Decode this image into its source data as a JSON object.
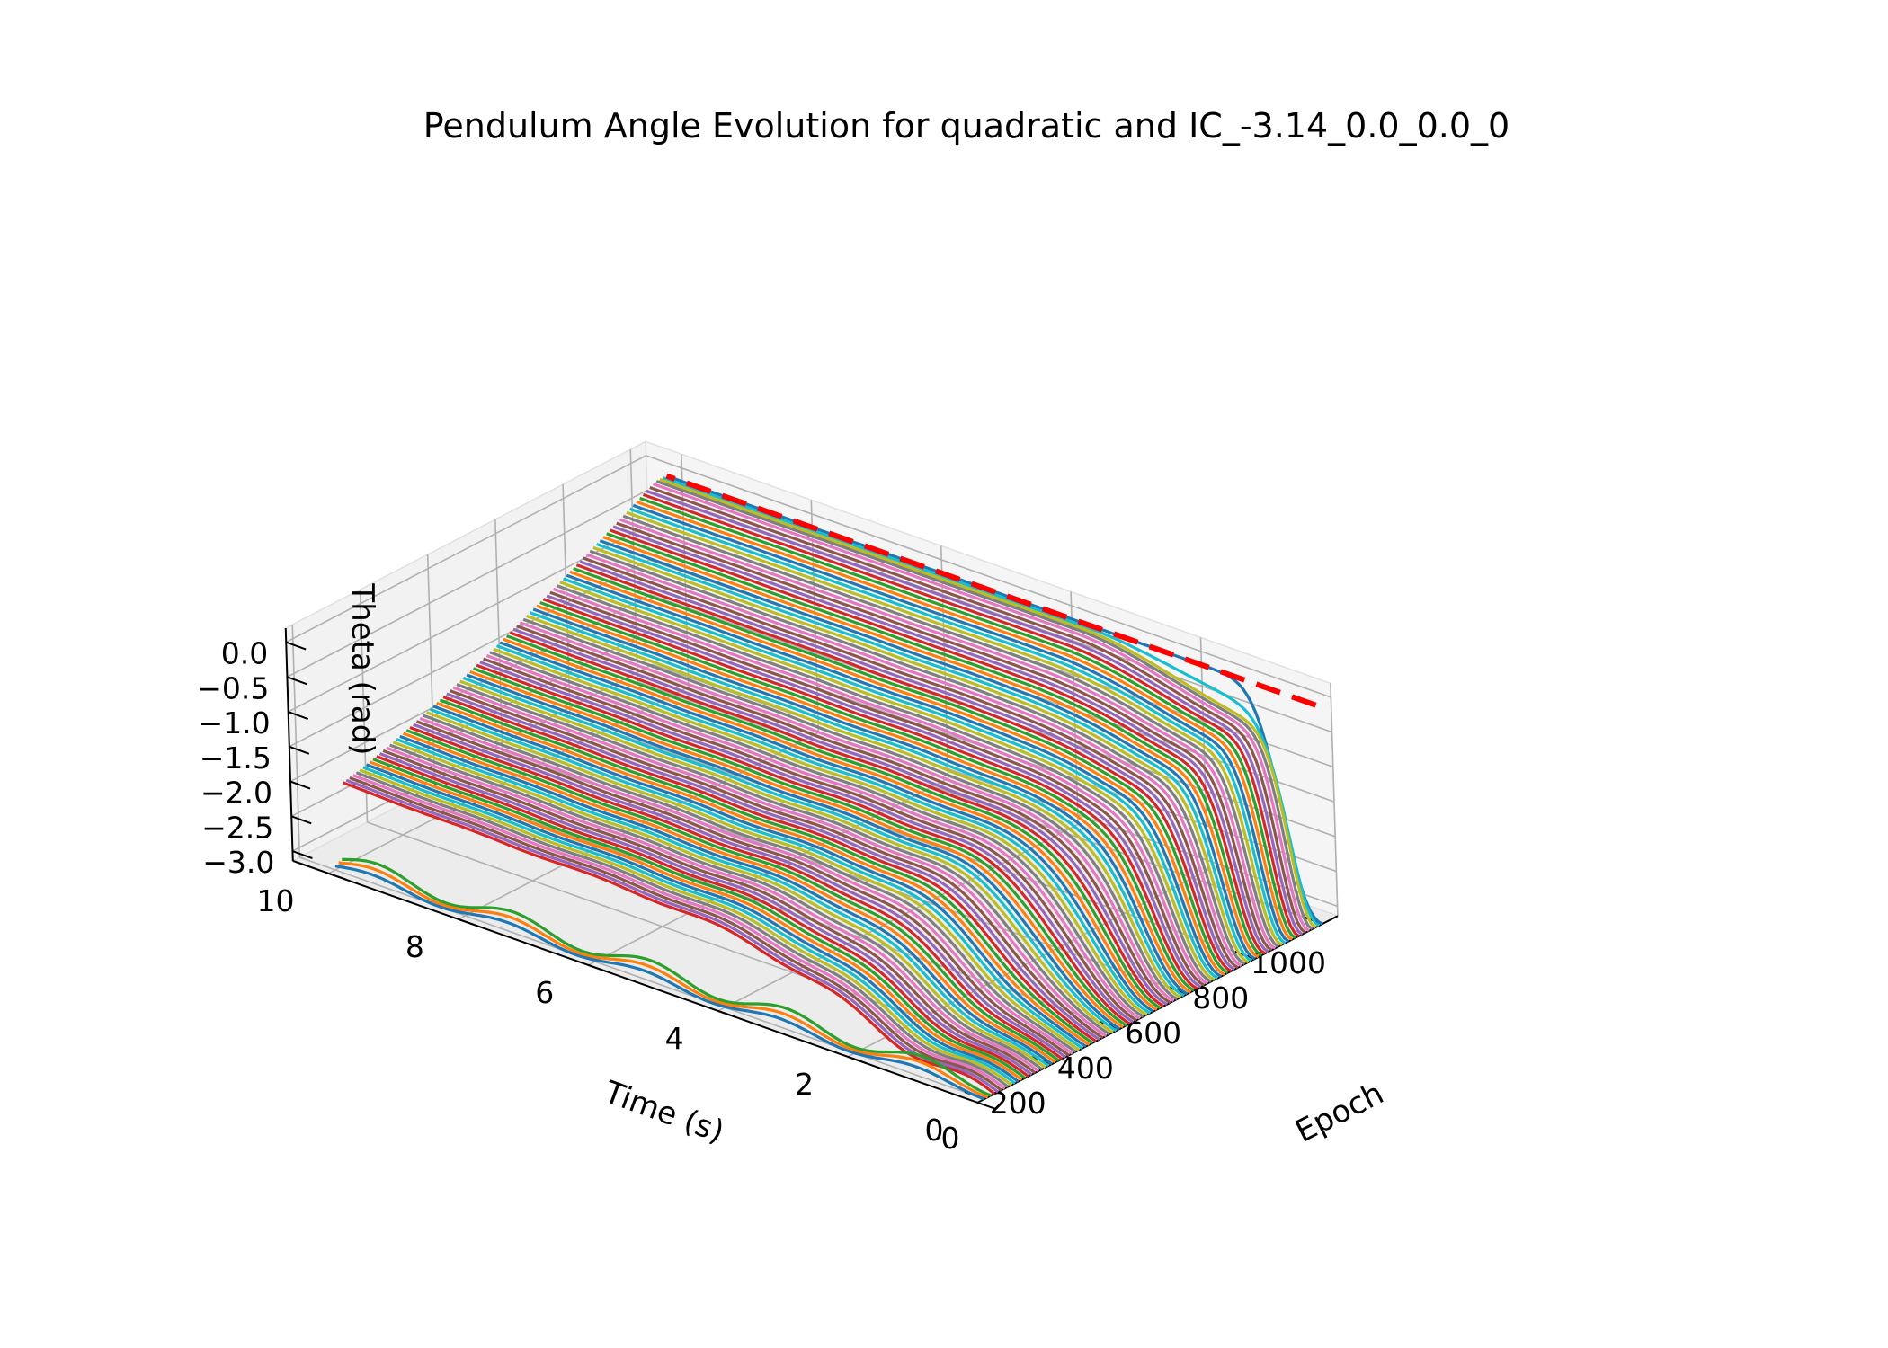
{
  "chart_data": {
    "type": "line",
    "projection": "3d",
    "title": "Pendulum Angle Evolution for quadratic and IC_-3.14_0.0_0.0_0",
    "xlabel": "Time (s)",
    "ylabel": "Epoch",
    "zlabel": "Theta (rad)",
    "xlim": [
      0,
      10
    ],
    "ylim": [
      0,
      1000
    ],
    "zlim": [
      -3.14,
      0.2
    ],
    "xticks": [
      "0",
      "2",
      "4",
      "6",
      "8",
      "10"
    ],
    "yticks": [
      "0",
      "200",
      "400",
      "600",
      "800",
      "1000"
    ],
    "zticks": [
      "−3.0",
      "−2.5",
      "−2.0",
      "−1.5",
      "−1.0",
      "−0.5",
      "0.0"
    ],
    "grid": true,
    "series_count": 101,
    "epoch_step": 10,
    "color_cycle": [
      "#1f77b4",
      "#ff7f0e",
      "#2ca02c",
      "#d62728",
      "#9467bd",
      "#8c564b",
      "#e377c2",
      "#7f7f7f",
      "#bcbd22",
      "#17becf"
    ],
    "reference_line": {
      "style": "dashed",
      "color": "#ff0000",
      "theta": 0.0,
      "epoch": 1000,
      "time_range": [
        0,
        10
      ]
    },
    "sample_series": [
      {
        "epoch": 0,
        "time": [
          0,
          2,
          4,
          6,
          8,
          10
        ],
        "theta": [
          -3.14,
          -3.02,
          -3.14,
          -3.02,
          -3.14,
          -3.02
        ]
      },
      {
        "epoch": 40,
        "time": [
          0,
          1,
          2,
          4,
          6,
          8,
          10
        ],
        "theta": [
          -3.14,
          -3.04,
          -2.55,
          -2.25,
          -2.16,
          -2.13,
          -2.12
        ]
      },
      {
        "epoch": 500,
        "time": [
          0,
          0.5,
          1,
          2,
          4,
          7,
          10
        ],
        "theta": [
          -3.14,
          -2.75,
          -1.8,
          -1.45,
          -1.3,
          -1.0,
          -0.55
        ]
      },
      {
        "epoch": 980,
        "time": [
          0,
          0.6,
          1.2,
          2,
          3,
          5,
          10
        ],
        "theta": [
          -3.14,
          -2.1,
          -0.6,
          -0.15,
          -0.04,
          -0.01,
          0.0
        ]
      },
      {
        "epoch": 1000,
        "time": [
          0,
          0.5,
          1,
          2,
          4,
          10
        ],
        "theta": [
          -3.14,
          -1.6,
          -0.3,
          -0.05,
          -0.01,
          0.0
        ]
      }
    ]
  }
}
